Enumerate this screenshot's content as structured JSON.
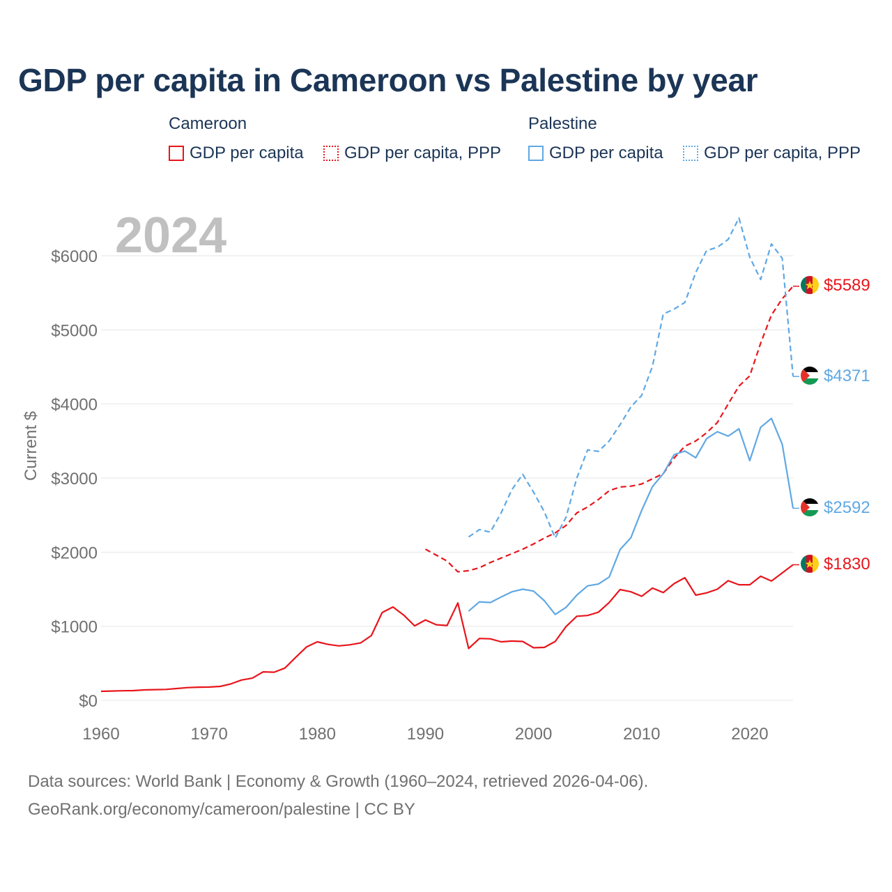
{
  "title": "GDP per capita in Cameroon vs Palestine by year",
  "legend": {
    "groups": [
      {
        "name": "Cameroon",
        "items": [
          "GDP per capita",
          "GDP per capita, PPP"
        ]
      },
      {
        "name": "Palestine",
        "items": [
          "GDP per capita",
          "GDP per capita, PPP"
        ]
      }
    ]
  },
  "colors": {
    "cameroon": "#e8151b",
    "palestine": "#5fa8e4",
    "grid": "#e6e6e6",
    "axis_text": "#707070",
    "year_watermark": "#c0c0c0"
  },
  "year_label": "2024",
  "footer": {
    "line1": "Data sources: World Bank | Economy & Growth (1960–2024, retrieved 2026-04-06).",
    "line2": "GeoRank.org/economy/cameroon/palestine | CC BY"
  },
  "chart_data": {
    "type": "line",
    "ylabel": "Current $",
    "xlabel": "",
    "xlim": [
      1960,
      2024
    ],
    "ylim": [
      0,
      6500
    ],
    "x_ticks": [
      1960,
      1970,
      1980,
      1990,
      2000,
      2010,
      2020
    ],
    "y_ticks": [
      0,
      1000,
      2000,
      3000,
      4000,
      5000,
      6000
    ],
    "y_tick_labels": [
      "$0",
      "$1000",
      "$2000",
      "$3000",
      "$4000",
      "$5000",
      "$6000"
    ],
    "grid": true,
    "series": [
      {
        "name": "Cameroon GDP per capita",
        "country": "cameroon",
        "style": "solid",
        "end_label": "$1830",
        "x": [
          1960,
          1961,
          1962,
          1963,
          1964,
          1965,
          1966,
          1967,
          1968,
          1969,
          1970,
          1971,
          1972,
          1973,
          1974,
          1975,
          1976,
          1977,
          1978,
          1979,
          1980,
          1981,
          1982,
          1983,
          1984,
          1985,
          1986,
          1987,
          1988,
          1989,
          1990,
          1991,
          1992,
          1993,
          1994,
          1995,
          1996,
          1997,
          1998,
          1999,
          2000,
          2001,
          2002,
          2003,
          2004,
          2005,
          2006,
          2007,
          2008,
          2009,
          2010,
          2011,
          2012,
          2013,
          2014,
          2015,
          2016,
          2017,
          2018,
          2019,
          2020,
          2021,
          2022,
          2023,
          2024
        ],
        "values": [
          122,
          126,
          130,
          132,
          141,
          145,
          148,
          160,
          172,
          178,
          180,
          188,
          222,
          275,
          300,
          385,
          380,
          435,
          580,
          720,
          790,
          755,
          735,
          750,
          775,
          875,
          1185,
          1260,
          1150,
          1005,
          1085,
          1020,
          1010,
          1315,
          700,
          835,
          830,
          790,
          800,
          795,
          710,
          715,
          795,
          995,
          1135,
          1145,
          1190,
          1320,
          1495,
          1465,
          1405,
          1515,
          1455,
          1575,
          1655,
          1420,
          1450,
          1500,
          1615,
          1560,
          1560,
          1675,
          1610,
          1720,
          1830
        ]
      },
      {
        "name": "Cameroon GDP per capita, PPP",
        "country": "cameroon",
        "style": "dashed",
        "end_label": "$5589",
        "x": [
          1990,
          1991,
          1992,
          1993,
          1994,
          1995,
          1996,
          1997,
          1998,
          1999,
          2000,
          2001,
          2002,
          2003,
          2004,
          2005,
          2006,
          2007,
          2008,
          2009,
          2010,
          2011,
          2012,
          2013,
          2014,
          2015,
          2016,
          2017,
          2018,
          2019,
          2020,
          2021,
          2022,
          2023,
          2024
        ],
        "values": [
          2040,
          1960,
          1880,
          1735,
          1750,
          1790,
          1860,
          1920,
          1980,
          2040,
          2110,
          2190,
          2260,
          2360,
          2530,
          2610,
          2710,
          2830,
          2880,
          2890,
          2920,
          2990,
          3060,
          3270,
          3430,
          3500,
          3610,
          3750,
          4000,
          4240,
          4380,
          4820,
          5200,
          5420,
          5589
        ]
      },
      {
        "name": "Palestine GDP per capita",
        "country": "palestine",
        "style": "solid",
        "end_label": "$2592",
        "x": [
          1994,
          1995,
          1996,
          1997,
          1998,
          1999,
          2000,
          2001,
          2002,
          2003,
          2004,
          2005,
          2006,
          2007,
          2008,
          2009,
          2010,
          2011,
          2012,
          2013,
          2014,
          2015,
          2016,
          2017,
          2018,
          2019,
          2020,
          2021,
          2022,
          2023,
          2024
        ],
        "values": [
          1205,
          1330,
          1320,
          1395,
          1465,
          1500,
          1475,
          1345,
          1160,
          1255,
          1420,
          1545,
          1570,
          1665,
          2035,
          2195,
          2565,
          2885,
          3060,
          3315,
          3365,
          3275,
          3530,
          3625,
          3565,
          3665,
          3235,
          3685,
          3805,
          3455,
          2592
        ]
      },
      {
        "name": "Palestine GDP per capita, PPP",
        "country": "palestine",
        "style": "dashed",
        "end_label": "$4371",
        "x": [
          1994,
          1995,
          1996,
          1997,
          1998,
          1999,
          2000,
          2001,
          2002,
          2003,
          2004,
          2005,
          2006,
          2007,
          2008,
          2009,
          2010,
          2011,
          2012,
          2013,
          2014,
          2015,
          2016,
          2017,
          2018,
          2019,
          2020,
          2021,
          2022,
          2023,
          2024
        ],
        "values": [
          2205,
          2305,
          2270,
          2530,
          2845,
          3050,
          2810,
          2545,
          2190,
          2470,
          3000,
          3380,
          3360,
          3500,
          3720,
          3960,
          4115,
          4510,
          5215,
          5280,
          5370,
          5775,
          6070,
          6115,
          6220,
          6510,
          5980,
          5680,
          6160,
          5965,
          4371
        ]
      }
    ]
  }
}
